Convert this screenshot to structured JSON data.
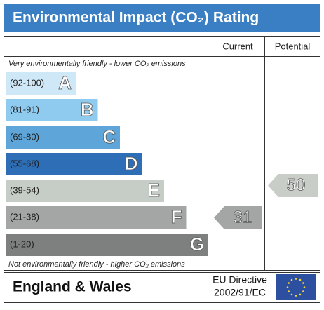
{
  "header": {
    "title": "Environmental Impact (CO₂) Rating"
  },
  "columns": [
    "Current",
    "Potential"
  ],
  "top_note": "Very environmentally friendly - lower CO₂ emissions",
  "bottom_note": "Not environmentally friendly - higher CO₂ emissions",
  "bands": [
    {
      "range": "(92-100)",
      "letter": "A"
    },
    {
      "range": "(81-91)",
      "letter": "B"
    },
    {
      "range": "(69-80)",
      "letter": "C"
    },
    {
      "range": "(55-68)",
      "letter": "D"
    },
    {
      "range": "(39-54)",
      "letter": "E"
    },
    {
      "range": "(21-38)",
      "letter": "F"
    },
    {
      "range": "(1-20)",
      "letter": "G"
    }
  ],
  "current": "31",
  "potential": "50",
  "footer": {
    "region": "England & Wales",
    "directive": [
      "EU Directive",
      "2002/91/EC"
    ]
  }
}
